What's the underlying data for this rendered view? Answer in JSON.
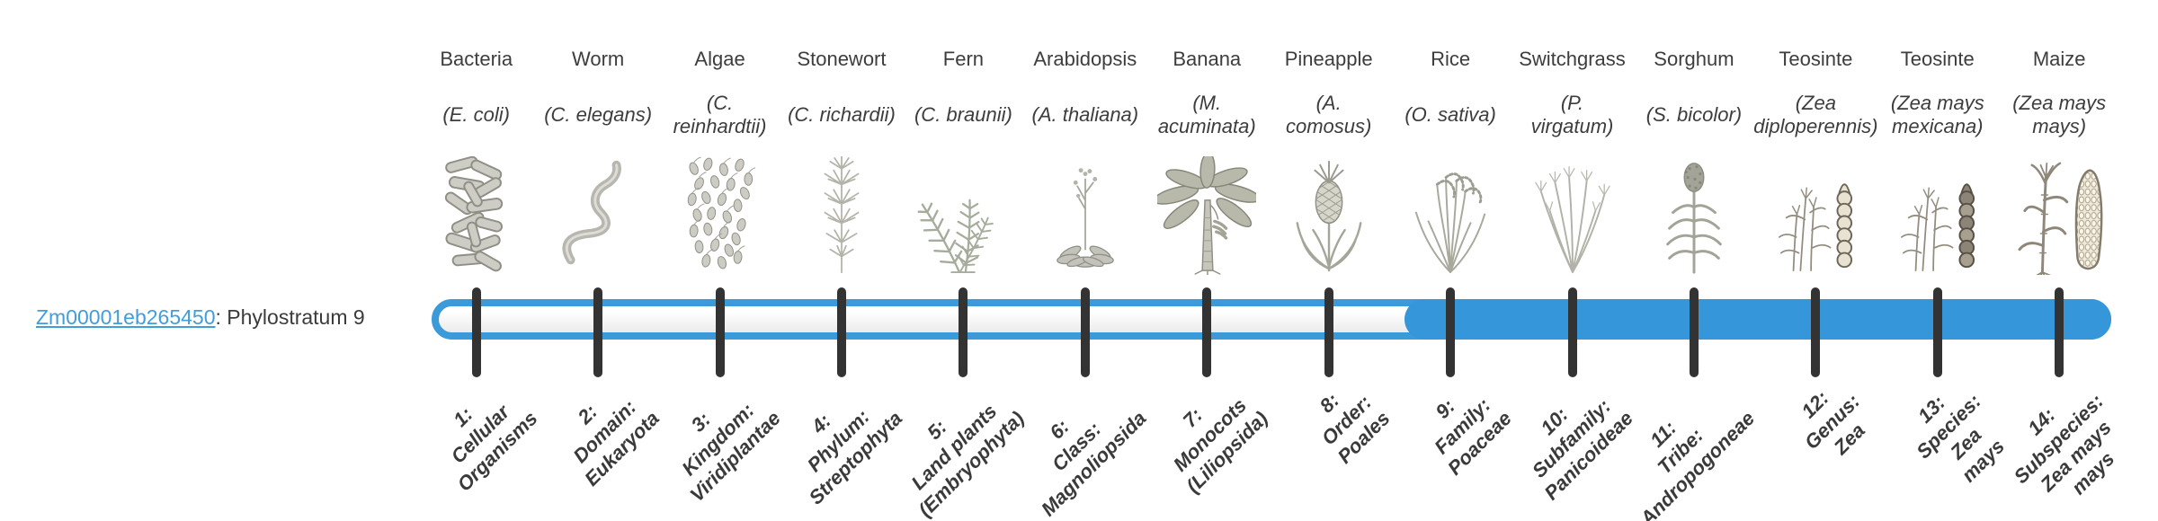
{
  "gene": {
    "id": "Zm00001eb265450",
    "description": ": Phylostratum 9",
    "phylostratum": 9
  },
  "bar": {
    "total_strata": 14,
    "highlight_from_stratum": 9,
    "highlight_to_stratum": 14,
    "track_border_color": "#3b9ad9",
    "fill_color": "#3596d9",
    "tick_color": "#333333",
    "link_color": "#419ddc"
  },
  "taxa": [
    {
      "name": "Bacteria",
      "sci": "(E. coli)",
      "icon": "bacteria-icon",
      "stratum_label": "1:\nCellular\nOrganisms"
    },
    {
      "name": "Worm",
      "sci": "(C. elegans)",
      "icon": "worm-icon",
      "stratum_label": "2:\nDomain:\nEukaryota"
    },
    {
      "name": "Algae",
      "sci": "(C.\nreinhardtii)",
      "icon": "algae-icon",
      "stratum_label": "3:\nKingdom:\nViridiplantae"
    },
    {
      "name": "Stonewort",
      "sci": "(C. richardii)",
      "icon": "stonewort-icon",
      "stratum_label": "4:\nPhylum:\nStreptophyta"
    },
    {
      "name": "Fern",
      "sci": "(C. braunii)",
      "icon": "fern-icon",
      "stratum_label": "5:\nLand plants\n(Embryophyta)"
    },
    {
      "name": "Arabidopsis",
      "sci": "(A. thaliana)",
      "icon": "arabidopsis-icon",
      "stratum_label": "6:\nClass:\nMagnoliopsida"
    },
    {
      "name": "Banana",
      "sci": "(M.\nacuminata)",
      "icon": "banana-icon",
      "stratum_label": "7:\nMonocots\n(Liliopsida)"
    },
    {
      "name": "Pineapple",
      "sci": "(A.\ncomosus)",
      "icon": "pineapple-icon",
      "stratum_label": "8:\nOrder:\nPoales"
    },
    {
      "name": "Rice",
      "sci": "(O. sativa)",
      "icon": "rice-icon",
      "stratum_label": "9:\nFamily:\nPoaceae"
    },
    {
      "name": "Switchgrass",
      "sci": "(P.\nvirgatum)",
      "icon": "switchgrass-icon",
      "stratum_label": "10:\nSubfamily:\nPanicoideae"
    },
    {
      "name": "Sorghum",
      "sci": "(S. bicolor)",
      "icon": "sorghum-icon",
      "stratum_label": "11:\nTribe:\nAndropogoneae"
    },
    {
      "name": "Teosinte",
      "sci": "(Zea\ndiploperennis)",
      "icon": "teosinte-diploperennis-icon",
      "stratum_label": "12:\nGenus:\nZea"
    },
    {
      "name": "Teosinte",
      "sci": "(Zea mays\nmexicana)",
      "icon": "teosinte-mexicana-icon",
      "stratum_label": "13:\nSpecies:\nZea\nmays"
    },
    {
      "name": "Maize",
      "sci": "(Zea mays\nmays)",
      "icon": "maize-icon",
      "stratum_label": "14:\nSubspecies:\nZea mays\nmays"
    }
  ],
  "chart_data": {
    "type": "bar",
    "title": "Zm00001eb265450: Phylostratum 9",
    "categories": [
      "1: Cellular Organisms",
      "2: Domain: Eukaryota",
      "3: Kingdom: Viridiplantae",
      "4: Phylum: Streptophyta",
      "5: Land plants (Embryophyta)",
      "6: Class: Magnoliopsida",
      "7: Monocots (Liliopsida)",
      "8: Order: Poales",
      "9: Family: Poaceae",
      "10: Subfamily: Panicoideae",
      "11: Tribe: Andropogoneae",
      "12: Genus: Zea",
      "13: Species: Zea mays",
      "14: Subspecies: Zea mays mays"
    ],
    "representative_taxa": [
      "Bacteria (E. coli)",
      "Worm (C. elegans)",
      "Algae (C. reinhardtii)",
      "Stonewort (C. richardii)",
      "Fern (C. braunii)",
      "Arabidopsis (A. thaliana)",
      "Banana (M. acuminata)",
      "Pineapple (A. comosus)",
      "Rice (O. sativa)",
      "Switchgrass (P. virgatum)",
      "Sorghum (S. bicolor)",
      "Teosinte (Zea diploperennis)",
      "Teosinte (Zea mays mexicana)",
      "Maize (Zea mays mays)"
    ],
    "values": [
      0,
      0,
      0,
      0,
      0,
      0,
      0,
      0,
      1,
      1,
      1,
      1,
      1,
      1
    ],
    "highlighted_range": [
      9,
      14
    ],
    "xlabel": "",
    "ylabel": "",
    "legend_position": "none",
    "grid": false
  }
}
